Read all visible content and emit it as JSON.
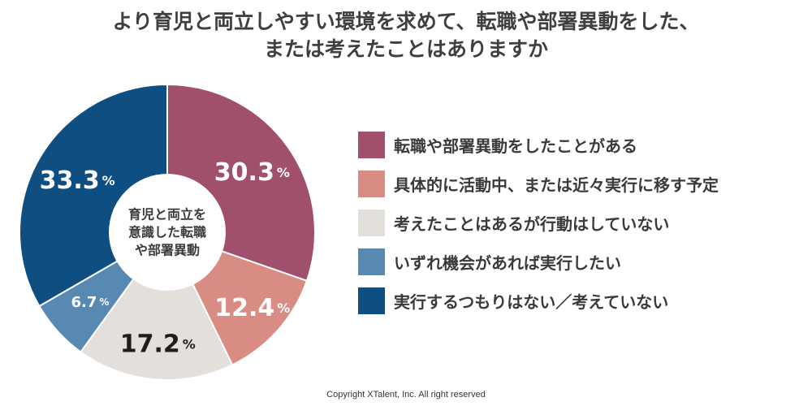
{
  "title": {
    "line1": "より育児と両立しやすい環境を求めて、転職や部署異動をした、",
    "line2": "または考えたことはありますか"
  },
  "center_label": [
    "育児と両立を",
    "意識した転職",
    "や部署異動"
  ],
  "footer": "Copyright XTalent, Inc. All right reserved",
  "chart_data": {
    "type": "pie",
    "donut": true,
    "start": "12 o'clock, clockwise",
    "legend_position": "right",
    "unit": "%",
    "slices": [
      {
        "label": "転職や部署異動をしたことがある",
        "value": 30.3,
        "display": "30.3",
        "color": "#a0506c",
        "label_color": "#ffffff"
      },
      {
        "label": "具体的に活動中、または近々実行に移す予定",
        "value": 12.4,
        "display": "12.4",
        "color": "#d98c84",
        "label_color": "#ffffff"
      },
      {
        "label": "考えたことはあるが行動はしていない",
        "value": 17.2,
        "display": "17.2",
        "color": "#e3dfda",
        "label_color": "#1e1e1e"
      },
      {
        "label": "いずれ機会があれば実行したい",
        "value": 6.7,
        "display": "6.7",
        "color": "#5889b3",
        "label_color": "#ffffff"
      },
      {
        "label": "実行するつもりはない／考えていない",
        "value": 33.3,
        "display": "33.3",
        "color": "#0f4e80",
        "label_color": "#ffffff"
      }
    ]
  }
}
